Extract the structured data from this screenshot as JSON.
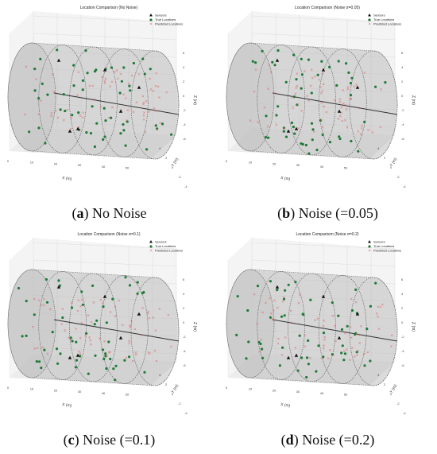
{
  "colors": {
    "sensor": "#111111",
    "true_location": "#1f7a3a",
    "predicted": "#e05a5a",
    "cylinder": "#bdbdbd"
  },
  "chart_data": [
    {
      "type": "scatter",
      "title": "Location Comparison (No Noise)",
      "caption_letter": "a",
      "caption_text": "No Noise",
      "xlabel": "X (m)",
      "ylabel": "Y (m)",
      "zlabel": "Z (m)",
      "x_ticks": [
        "0",
        "10",
        "20",
        "30",
        "40",
        "50"
      ],
      "y_ticks": [
        "-4",
        "-2",
        "0",
        "2",
        "4"
      ],
      "z_ticks": [
        "6",
        "4",
        "2",
        "0",
        "-2",
        "-4",
        "-6"
      ],
      "legend": [
        "Sensors",
        "True Locations",
        "Predicted Locations"
      ],
      "seed": 11
    },
    {
      "type": "scatter",
      "title": "Location Comparison (Noise σ=0.05)",
      "caption_letter": "b",
      "caption_text": "Noise (=0.05)",
      "xlabel": "X (m)",
      "ylabel": "Y (m)",
      "zlabel": "Z (m)",
      "x_ticks": [
        "0",
        "10",
        "20",
        "30",
        "40",
        "50"
      ],
      "y_ticks": [
        "-4",
        "-2",
        "0",
        "2",
        "4"
      ],
      "z_ticks": [
        "6",
        "4",
        "2",
        "0",
        "-2",
        "-4",
        "-6"
      ],
      "legend": [
        "Sensors",
        "True Locations",
        "Predicted Locations"
      ],
      "seed": 23
    },
    {
      "type": "scatter",
      "title": "Location Comparison (Noise σ=0.1)",
      "caption_letter": "c",
      "caption_text": "Noise (=0.1)",
      "xlabel": "X (m)",
      "ylabel": "Y (m)",
      "zlabel": "Z (m)",
      "x_ticks": [
        "0",
        "10",
        "20",
        "30",
        "40",
        "50"
      ],
      "y_ticks": [
        "-4",
        "-2",
        "0",
        "2",
        "4"
      ],
      "z_ticks": [
        "6",
        "4",
        "2",
        "0",
        "-2",
        "-4",
        "-6"
      ],
      "legend": [
        "Sensors",
        "True Locations",
        "Predicted Locations"
      ],
      "seed": 37
    },
    {
      "type": "scatter",
      "title": "Location Comparison (Noise σ=0.2)",
      "caption_letter": "d",
      "caption_text": "Noise (=0.2)",
      "xlabel": "X (m)",
      "ylabel": "Y (m)",
      "zlabel": "Z (m)",
      "x_ticks": [
        "0",
        "10",
        "20",
        "30",
        "40",
        "50"
      ],
      "y_ticks": [
        "-4",
        "-2",
        "0",
        "2",
        "4"
      ],
      "z_ticks": [
        "6",
        "4",
        "2",
        "0",
        "-2",
        "-4",
        "-6"
      ],
      "legend": [
        "Sensors",
        "True Locations",
        "Predicted Locations"
      ],
      "seed": 53
    }
  ]
}
